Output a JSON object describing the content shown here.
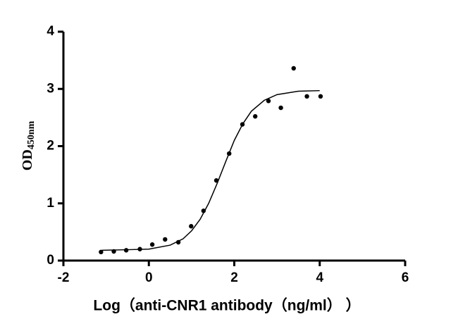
{
  "chart_data": {
    "type": "scatter",
    "xlabel": "Log（anti-CNR1 antibody（ng/ml） ）",
    "ylabel": "OD",
    "ylabel_subscript": "450nm",
    "xlim": [
      -2,
      6
    ],
    "ylim": [
      0,
      4
    ],
    "xticks": [
      -2,
      0,
      2,
      4,
      6
    ],
    "yticks": [
      0,
      1,
      2,
      3,
      4
    ],
    "grid": false,
    "series": [
      {
        "kind": "points",
        "color": "#000000",
        "x": [
          -1.12,
          -0.82,
          -0.53,
          -0.21,
          0.08,
          0.38,
          0.69,
          0.99,
          1.28,
          1.58,
          1.88,
          2.19,
          2.49,
          2.8,
          3.09,
          3.39,
          3.7,
          4.02
        ],
        "values": [
          0.15,
          0.16,
          0.18,
          0.2,
          0.28,
          0.37,
          0.32,
          0.6,
          0.87,
          1.4,
          1.87,
          2.38,
          2.52,
          2.79,
          2.67,
          3.36,
          2.87,
          2.87
        ]
      },
      {
        "kind": "curve",
        "color": "#000000",
        "x": [
          -1.1,
          -0.5,
          0,
          0.5,
          0.8,
          1.0,
          1.2,
          1.4,
          1.6,
          1.8,
          2.0,
          2.2,
          2.4,
          2.7,
          3.0,
          3.5,
          4.0
        ],
        "values": [
          0.18,
          0.19,
          0.2,
          0.27,
          0.38,
          0.52,
          0.72,
          1.0,
          1.35,
          1.73,
          2.1,
          2.39,
          2.61,
          2.8,
          2.9,
          2.96,
          2.97
        ]
      }
    ]
  }
}
